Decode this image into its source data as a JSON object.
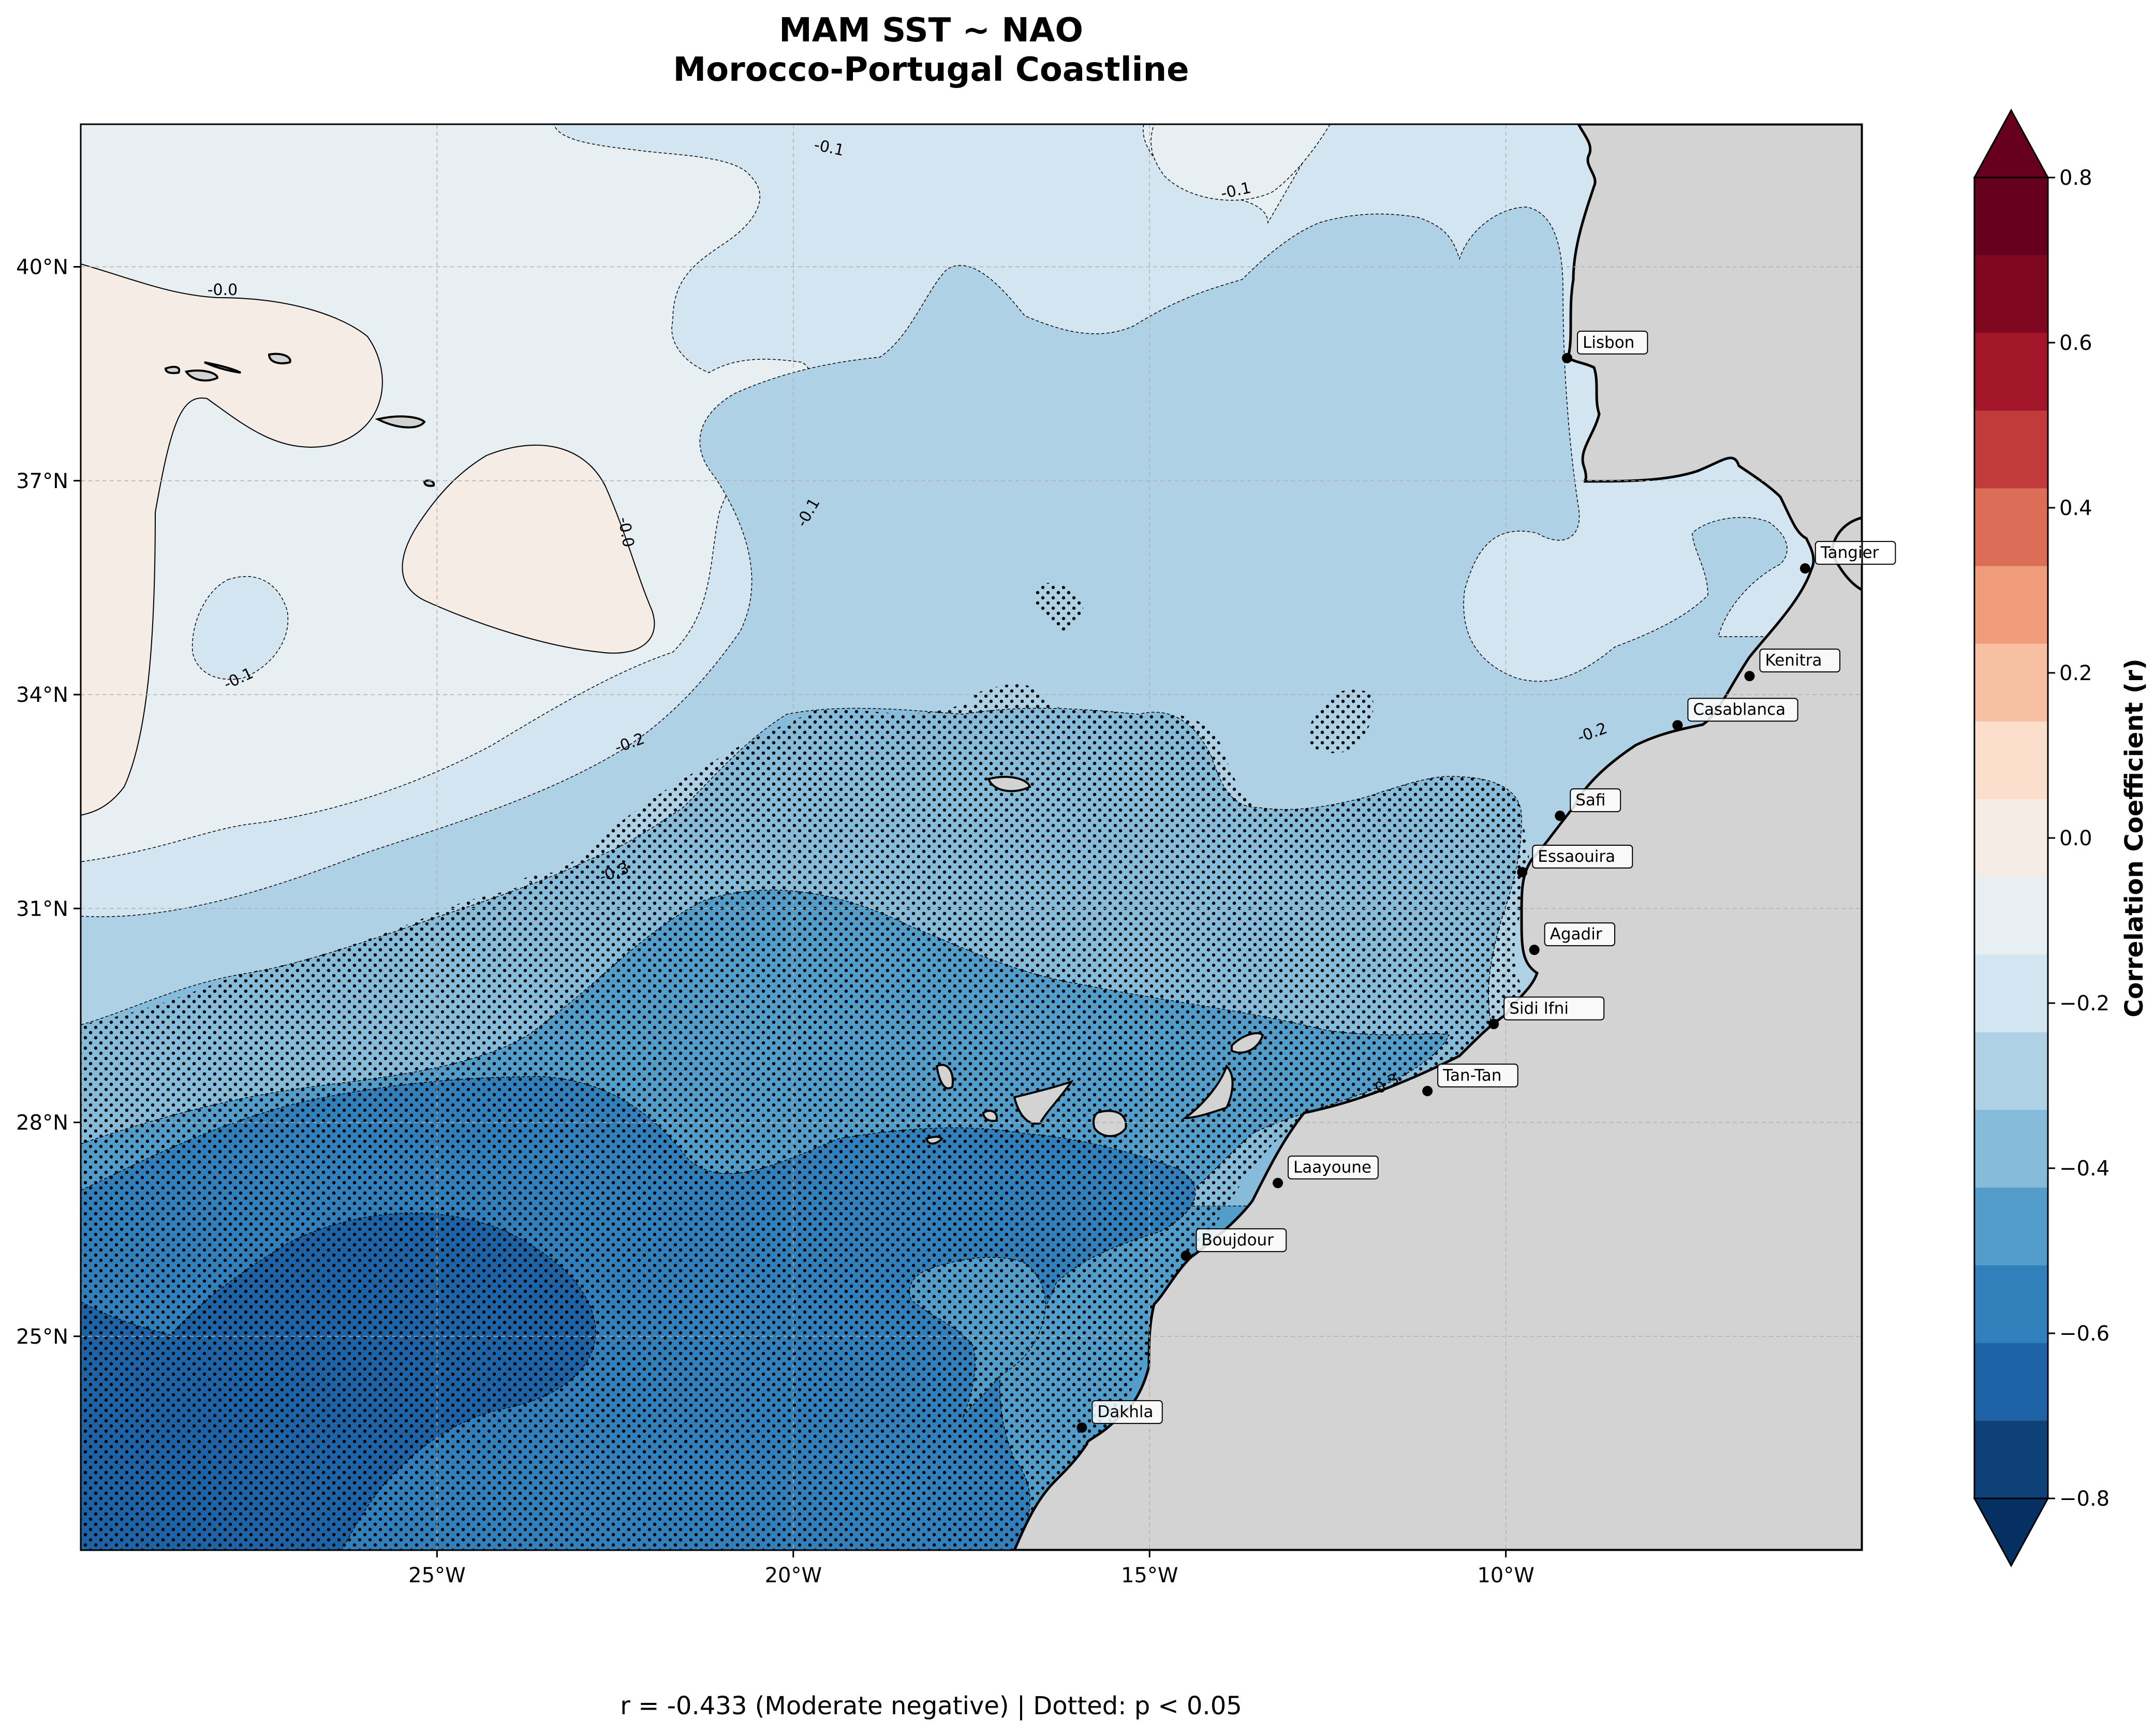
{
  "title": "MAM SST ~ NAO",
  "subtitle": "Morocco-Portugal Coastline",
  "footer": "r = -0.433 (Moderate negative) | Dotted: p < 0.05",
  "map": {
    "lon_range": [
      -30,
      -5
    ],
    "lat_range": [
      22,
      42
    ],
    "lon_ticks": [
      {
        "value": -25,
        "label": "25°W"
      },
      {
        "value": -20,
        "label": "20°W"
      },
      {
        "value": -15,
        "label": "15°W"
      },
      {
        "value": -10,
        "label": "10°W"
      }
    ],
    "lat_ticks": [
      {
        "value": 40,
        "label": "40°N"
      },
      {
        "value": 37,
        "label": "37°N"
      },
      {
        "value": 34,
        "label": "34°N"
      },
      {
        "value": 31,
        "label": "31°N"
      },
      {
        "value": 28,
        "label": "28°N"
      },
      {
        "value": 25,
        "label": "25°N"
      }
    ],
    "grid": true,
    "land_color": "#d3d3d3",
    "significance_hatch": "dots (p < 0.05)",
    "contour_labels": [
      "-0.0",
      "-0.0",
      "-0.1",
      "-0.1",
      "-0.1",
      "-0.1",
      "-0.2",
      "-0.2",
      "-0.3",
      "-0.3"
    ],
    "cities": [
      {
        "name": "Lisbon",
        "lon": -9.14,
        "lat": 38.72
      },
      {
        "name": "Tangier",
        "lon": -5.8,
        "lat": 35.77
      },
      {
        "name": "Kenitra",
        "lon": -6.58,
        "lat": 34.26
      },
      {
        "name": "Casablanca",
        "lon": -7.59,
        "lat": 33.57
      },
      {
        "name": "Safi",
        "lon": -9.24,
        "lat": 32.3
      },
      {
        "name": "Essaouira",
        "lon": -9.77,
        "lat": 31.51
      },
      {
        "name": "Agadir",
        "lon": -9.6,
        "lat": 30.42
      },
      {
        "name": "Sidi Ifni",
        "lon": -10.17,
        "lat": 29.38
      },
      {
        "name": "Tan-Tan",
        "lon": -11.1,
        "lat": 28.44
      },
      {
        "name": "Laayoune",
        "lon": -13.2,
        "lat": 27.15
      },
      {
        "name": "Boujdour",
        "lon": -14.49,
        "lat": 26.13
      },
      {
        "name": "Dakhla",
        "lon": -15.95,
        "lat": 23.72
      }
    ]
  },
  "colorbar": {
    "label": "Correlation Coefficient (r)",
    "range": [
      -0.8,
      0.8
    ],
    "ticks": [
      "0.8",
      "0.6",
      "0.4",
      "0.2",
      "0.0",
      "−0.2",
      "−0.4",
      "−0.6",
      "−0.8"
    ],
    "colors_top_to_bottom": [
      "#67001f",
      "#7f0820",
      "#a3162a",
      "#c13b3c",
      "#dc6e58",
      "#f09b7a",
      "#f7c0a3",
      "#fcdecd",
      "#f6ece6",
      "#e7eff3",
      "#d3e5f0",
      "#aed1e5",
      "#86bcda",
      "#539dca",
      "#3280bb",
      "#1d63a6",
      "#0e4178"
    ],
    "extend_colors": {
      "top": "#67001f",
      "bottom": "#053061"
    }
  }
}
